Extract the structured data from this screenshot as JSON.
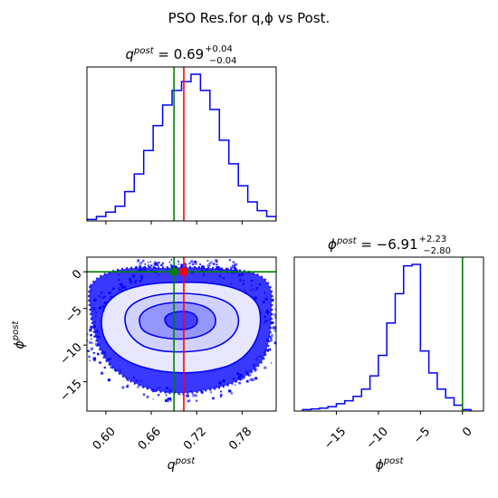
{
  "figure": {
    "suptitle": "PSO Res.for q,ϕ vs Post.",
    "q_title": {
      "symbol": "q",
      "sup": "post",
      "eq": " = 0.69",
      "plus": "+0.04",
      "minus": "−0.04"
    },
    "phi_title": {
      "symbol": "ϕ",
      "sup": "post",
      "eq": " = −6.91",
      "plus": "+2.23",
      "minus": "−2.80"
    },
    "xlabel_q": {
      "symbol": "q",
      "sup": "post"
    },
    "xlabel_phi": {
      "symbol": "ϕ",
      "sup": "post"
    },
    "ylabel_phi": {
      "symbol": "ϕ",
      "sup": "post"
    }
  },
  "colors": {
    "hist": "#0000ff",
    "truth_green": "#008000",
    "pso_red": "#ff0000",
    "contour": "#0000ff"
  },
  "chart_data": [
    {
      "type": "histogram",
      "panel": "q-marginal",
      "xlim": [
        0.575,
        0.825
      ],
      "bin_edges": [
        0.575,
        0.5875,
        0.6,
        0.6125,
        0.625,
        0.6375,
        0.65,
        0.6625,
        0.675,
        0.6875,
        0.7,
        0.7125,
        0.725,
        0.7375,
        0.75,
        0.7625,
        0.775,
        0.7875,
        0.8,
        0.8125,
        0.825
      ],
      "counts": [
        0.01,
        0.03,
        0.06,
        0.1,
        0.2,
        0.32,
        0.48,
        0.65,
        0.79,
        0.89,
        0.95,
        1.0,
        0.89,
        0.76,
        0.55,
        0.39,
        0.24,
        0.13,
        0.07,
        0.03
      ],
      "truth_line": 0.69,
      "pso_line": 0.703
    },
    {
      "type": "density-scatter",
      "panel": "q-phi-joint",
      "xlim": [
        0.575,
        0.825
      ],
      "ylim": [
        -19,
        2
      ],
      "xticks": [
        "0.60",
        "0.66",
        "0.72",
        "0.78"
      ],
      "yticks": [
        "0",
        "−5",
        "−10",
        "−15"
      ],
      "xticks_values": [
        0.6,
        0.66,
        0.72,
        0.78
      ],
      "yticks_values": [
        0,
        -5,
        -10,
        -15
      ],
      "center": {
        "q": 0.69,
        "phi": -6.91
      },
      "truth_point": {
        "q": 0.69,
        "phi": 0
      },
      "pso_point": {
        "q": 0.703,
        "phi": 0
      },
      "truth_vline": 0.69,
      "truth_hline": 0,
      "pso_vline": 0.703
    },
    {
      "type": "histogram",
      "panel": "phi-marginal",
      "xlim": [
        -20,
        2.5
      ],
      "xticks": [
        "−15",
        "−10",
        "−5",
        "0"
      ],
      "xticks_values": [
        -15,
        -10,
        -5,
        0
      ],
      "bin_edges": [
        -19,
        -18,
        -17,
        -16,
        -15,
        -14,
        -13,
        -12,
        -11,
        -10,
        -9,
        -8,
        -7,
        -6,
        -5,
        -4,
        -3,
        -2,
        -1,
        0,
        1
      ],
      "counts": [
        0.01,
        0.015,
        0.02,
        0.03,
        0.05,
        0.07,
        0.1,
        0.15,
        0.24,
        0.38,
        0.6,
        0.8,
        0.99,
        1.0,
        0.41,
        0.26,
        0.15,
        0.09,
        0.04,
        0.01
      ],
      "truth_line": 0
    }
  ]
}
